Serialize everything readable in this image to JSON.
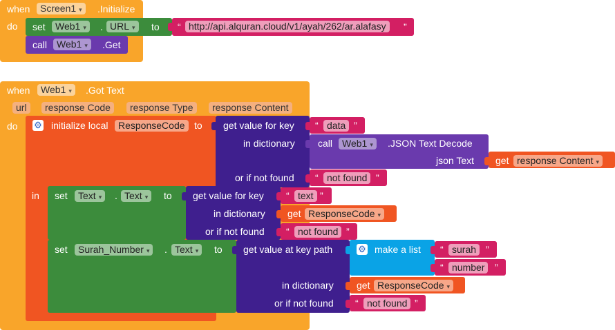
{
  "event1": {
    "when": "when",
    "component": "Screen1",
    "event": ".Initialize",
    "do": "do",
    "set_label": "set",
    "set_component": "Web1",
    "dot": ".",
    "set_property": "URL",
    "to": "to",
    "url_text": "http://api.alquran.cloud/v1/ayah/262/ar.alafasy",
    "call_label": "call",
    "call_component": "Web1",
    "call_method": ".Get"
  },
  "event2": {
    "when": "when",
    "component": "Web1",
    "event": ".Got Text",
    "params": [
      "url",
      "response Code",
      "response Type",
      "response Content"
    ],
    "do": "do",
    "in": "in",
    "init_local": "initialize local",
    "local_name": "ResponseCode",
    "to": "to",
    "get_value_for_key": "get value for key",
    "key_data": "data",
    "in_dictionary": "in dictionary",
    "call_label": "call",
    "call_component": "Web1",
    "call_method": ".JSON Text Decode",
    "json_text": "json Text",
    "get_label": "get",
    "get_var": "response Content",
    "or_if_not_found": "or if not found",
    "not_found_1": "not found",
    "set1_label": "set",
    "set1_component": "Text",
    "set1_dot": ".",
    "set1_property": "Text",
    "set1_to": "to",
    "key_text": "text",
    "get_responsecode_1": "ResponseCode",
    "not_found_2": "not found",
    "set2_label": "set",
    "set2_component": "Surah_Number",
    "set2_dot": ".",
    "set2_property": "Text",
    "set2_to": "to",
    "get_value_at_key_path": "get value at key path",
    "make_a_list": "make a list",
    "list_item_1": "surah",
    "list_item_2": "number",
    "get_responsecode_2": "ResponseCode",
    "not_found_3": "not found"
  },
  "colors": {
    "event": "#f9a52a",
    "component_set": "#3c8c3c",
    "component_call": "#6a3aad",
    "dictionary": "#3f1f8e",
    "text": "#d31f63",
    "variable": "#f05522",
    "list": "#0aa3e6"
  },
  "icons": {
    "dropdown": "▾",
    "gear": "gear-icon",
    "quote_open": "“",
    "quote_close": "”"
  }
}
